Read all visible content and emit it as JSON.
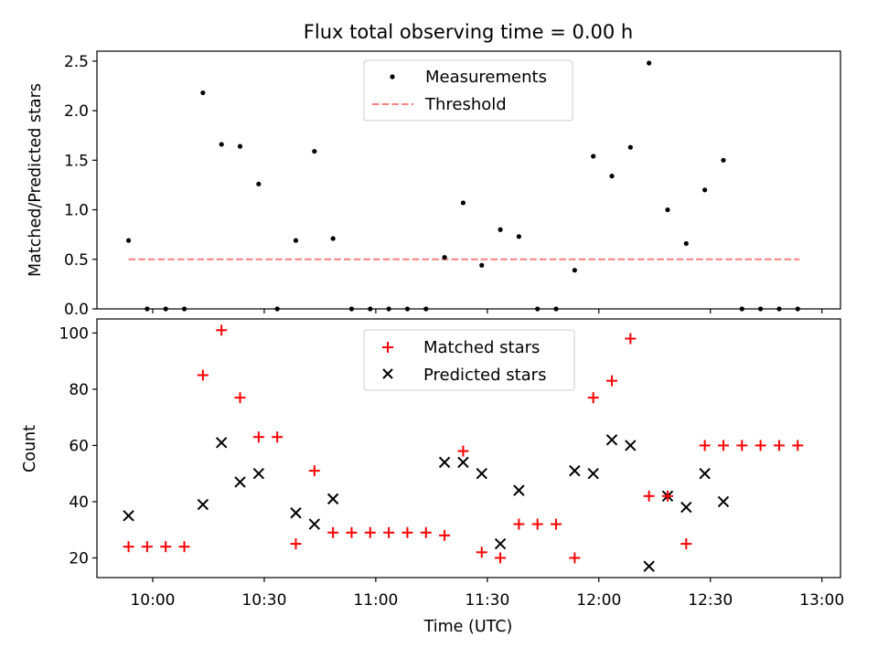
{
  "chart_data": {
    "type": "scatter",
    "title": "Flux total observing time = 0.00 h",
    "xlabel": "Time (UTC)",
    "x_unit": "minutes since 09:00 UTC",
    "xlim": [
      45,
      245
    ],
    "x_ticks": [
      {
        "value": 60,
        "label": "10:00"
      },
      {
        "value": 90,
        "label": "10:30"
      },
      {
        "value": 120,
        "label": "11:00"
      },
      {
        "value": 150,
        "label": "11:30"
      },
      {
        "value": 180,
        "label": "12:00"
      },
      {
        "value": 210,
        "label": "12:30"
      },
      {
        "value": 240,
        "label": "13:00"
      }
    ],
    "top": {
      "ylabel": "Matched/Predicted stars",
      "ylim": [
        0,
        2.6
      ],
      "y_ticks": [
        {
          "value": 0,
          "label": "0.0"
        },
        {
          "value": 0.5,
          "label": "0.5"
        },
        {
          "value": 1.0,
          "label": "1.0"
        },
        {
          "value": 1.5,
          "label": "1.5"
        },
        {
          "value": 2.0,
          "label": "2.0"
        },
        {
          "value": 2.5,
          "label": "2.5"
        }
      ],
      "legend": [
        "Measurements",
        "Threshold"
      ],
      "threshold": {
        "x": [
          53.5,
          234
        ],
        "y": 0.5,
        "color": "#ff7f7f"
      },
      "measurements": {
        "x": [
          53.5,
          58.5,
          63.5,
          68.5,
          73.5,
          78.5,
          83.5,
          88.5,
          93.5,
          98.5,
          103.5,
          108.5,
          113.5,
          118.5,
          123.5,
          128.5,
          133.5,
          138.5,
          143.5,
          148.5,
          153.5,
          158.5,
          163.5,
          168.5,
          173.5,
          178.5,
          183.5,
          188.5,
          193.5,
          198.5,
          203.5,
          208.5,
          213.5,
          218.5,
          223.5,
          228.5,
          233.5
        ],
        "y": [
          0.69,
          0,
          0,
          0,
          2.18,
          1.66,
          1.64,
          1.26,
          0,
          0.69,
          1.59,
          0.71,
          0,
          0,
          0,
          0,
          0,
          0.52,
          1.07,
          0.44,
          0.8,
          0.73,
          0,
          0,
          0.39,
          1.54,
          1.34,
          1.63,
          2.48,
          1.0,
          0.66,
          1.2,
          1.5,
          0,
          0,
          0,
          0
        ],
        "color": "#000000"
      }
    },
    "bottom": {
      "ylabel": "Count",
      "ylim": [
        13,
        105
      ],
      "y_ticks": [
        {
          "value": 20,
          "label": "20"
        },
        {
          "value": 40,
          "label": "40"
        },
        {
          "value": 60,
          "label": "60"
        },
        {
          "value": 80,
          "label": "80"
        },
        {
          "value": 100,
          "label": "100"
        }
      ],
      "legend": [
        "Matched stars",
        "Predicted stars"
      ],
      "matched": {
        "x": [
          53.5,
          58.5,
          63.5,
          68.5,
          73.5,
          78.5,
          83.5,
          88.5,
          93.5,
          98.5,
          103.5,
          108.5,
          113.5,
          118.5,
          123.5,
          128.5,
          133.5,
          138.5,
          143.5,
          148.5,
          153.5,
          158.5,
          163.5,
          168.5,
          173.5,
          178.5,
          183.5,
          188.5,
          193.5,
          198.5,
          203.5,
          208.5,
          213.5,
          218.5,
          223.5,
          228.5,
          233.5
        ],
        "y": [
          24,
          24,
          24,
          24,
          85,
          101,
          77,
          63,
          63,
          25,
          51,
          29,
          29,
          29,
          29,
          29,
          29,
          28,
          58,
          22,
          20,
          32,
          32,
          32,
          20,
          77,
          83,
          98,
          42,
          42,
          25,
          60,
          60,
          60,
          60,
          60,
          60
        ],
        "color": "#ff0000"
      },
      "predicted": {
        "x": [
          53.5,
          73.5,
          78.5,
          83.5,
          88.5,
          98.5,
          103.5,
          108.5,
          138.5,
          143.5,
          148.5,
          153.5,
          158.5,
          173.5,
          178.5,
          183.5,
          188.5,
          193.5,
          198.5,
          203.5,
          208.5,
          213.5
        ],
        "y": [
          35,
          39,
          61,
          47,
          50,
          36,
          32,
          41,
          54,
          54,
          50,
          25,
          44,
          51,
          50,
          62,
          60,
          17,
          42,
          38,
          50,
          40
        ],
        "color": "#000000"
      }
    }
  }
}
